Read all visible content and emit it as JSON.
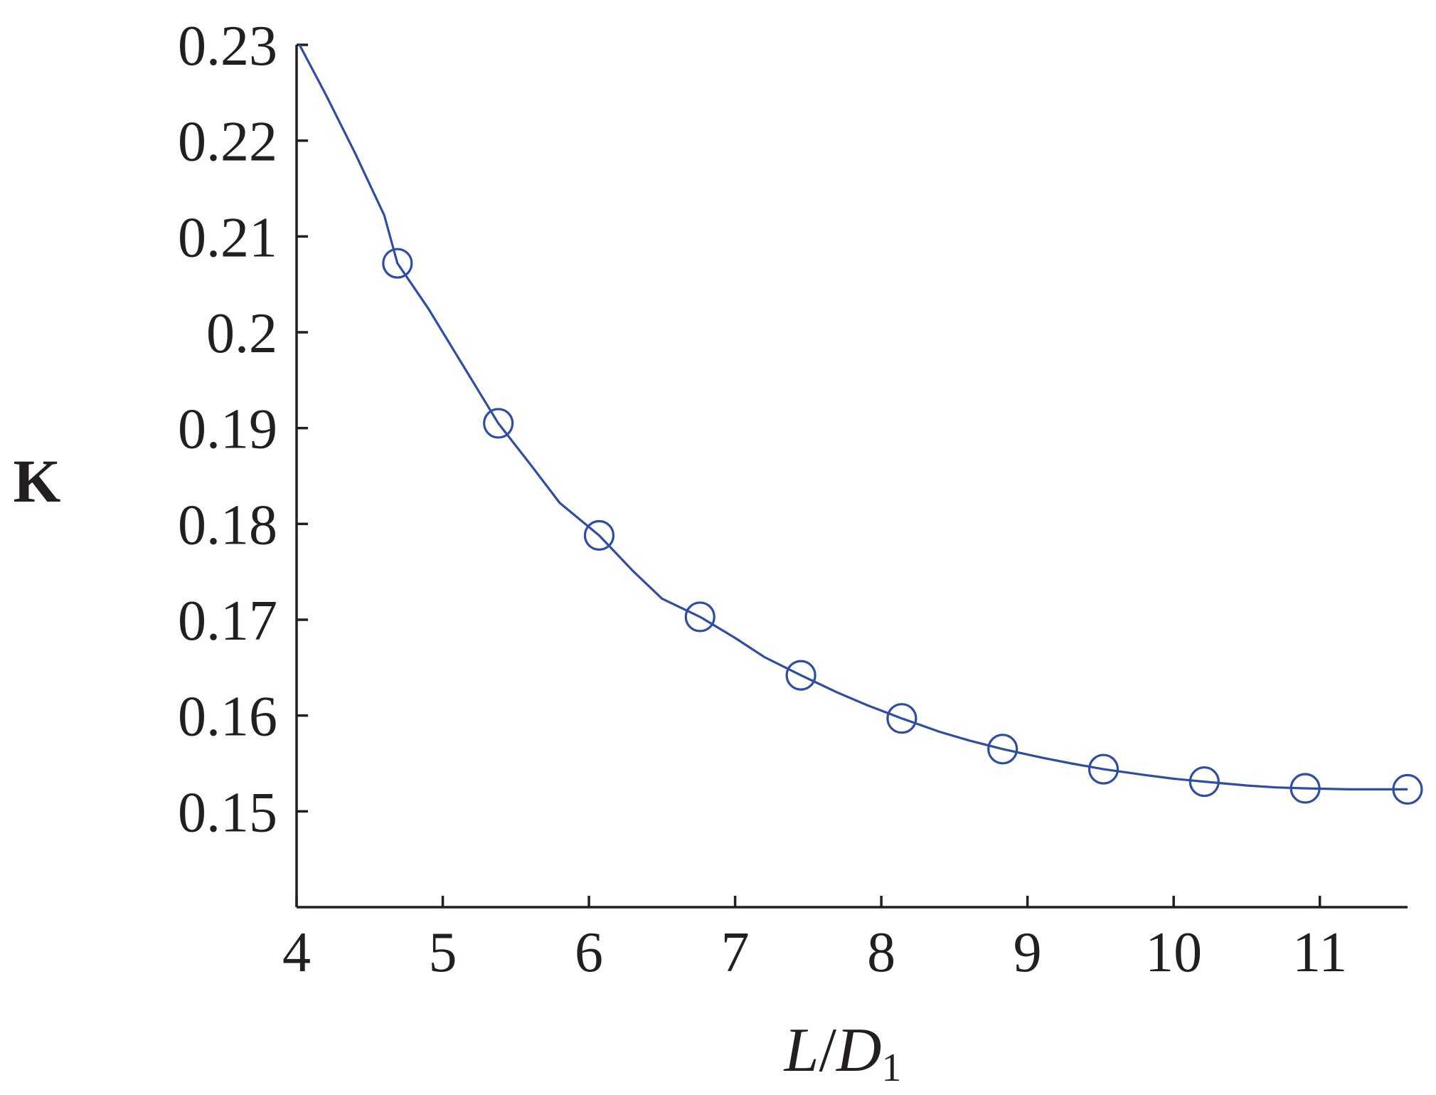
{
  "chart_data": {
    "type": "line",
    "title": "",
    "xlabel": {
      "main": "L",
      "slash": "/",
      "var": "D",
      "sub": "1"
    },
    "ylabel": "K",
    "xlim": [
      4,
      11.6
    ],
    "ylim": [
      0.14,
      0.23
    ],
    "x_ticks": [
      4,
      5,
      6,
      7,
      8,
      9,
      10,
      11
    ],
    "x_tick_labels": [
      "4",
      "5",
      "6",
      "7",
      "8",
      "9",
      "10",
      "11"
    ],
    "y_ticks": [
      0.23,
      0.22,
      0.21,
      0.2,
      0.19,
      0.18,
      0.17,
      0.16,
      0.15
    ],
    "y_tick_labels": [
      "0.23",
      "0.22",
      "0.21",
      "0.2",
      "0.19",
      "0.18",
      "0.17",
      "0.16",
      "0.15"
    ],
    "grid": false,
    "legend": "none",
    "series_color": "#2e4da3",
    "series": [
      {
        "curve": {
          "x": [
            4.02,
            4.2,
            4.4,
            4.6,
            4.69,
            4.9,
            5.1,
            5.38,
            5.6,
            5.8,
            6.07,
            6.3,
            6.5,
            6.76,
            7.0,
            7.2,
            7.45,
            7.7,
            7.9,
            8.14,
            8.4,
            8.6,
            8.83,
            9.1,
            9.3,
            9.52,
            9.8,
            10.0,
            10.21,
            10.5,
            10.7,
            10.9,
            11.2,
            11.4,
            11.6
          ],
          "y": [
            0.23,
            0.2248,
            0.2187,
            0.2122,
            0.2072,
            0.2025,
            0.1975,
            0.1905,
            0.1862,
            0.1822,
            0.1788,
            0.1751,
            0.1722,
            0.1703,
            0.1681,
            0.1661,
            0.1642,
            0.1624,
            0.1611,
            0.1597,
            0.1583,
            0.1574,
            0.1565,
            0.1556,
            0.155,
            0.1544,
            0.1538,
            0.1534,
            0.1531,
            0.1527,
            0.1525,
            0.1524,
            0.1523,
            0.1523,
            0.1523
          ]
        },
        "markers": {
          "x": [
            4.69,
            5.38,
            6.07,
            6.76,
            7.45,
            8.14,
            8.83,
            9.52,
            10.21,
            10.9,
            11.6
          ],
          "y": [
            0.2072,
            0.1905,
            0.1788,
            0.1703,
            0.1642,
            0.1597,
            0.1565,
            0.1544,
            0.1531,
            0.1524,
            0.1523
          ]
        }
      }
    ]
  }
}
